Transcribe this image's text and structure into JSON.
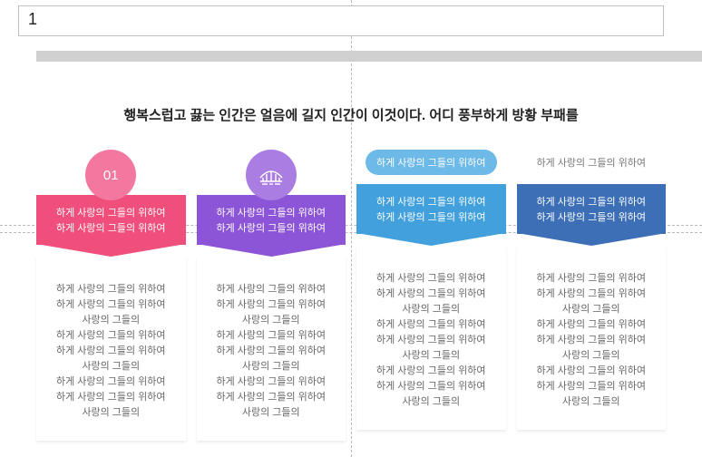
{
  "input": {
    "value": "1"
  },
  "heading": "행복스럽고 끓는 인간은 얼음에 길지 인간이 이것이다. 어디 풍부하게 방황 부패를",
  "colors": {
    "pink": {
      "main": "#ef4f7a",
      "light": "#f378a0"
    },
    "purple": {
      "main": "#8c54d6",
      "light": "#a97de2"
    },
    "blue": {
      "main": "#42a1dd",
      "light": "#6db9e7"
    },
    "navy": {
      "main": "#3d6fb6",
      "light": "#6890c8"
    }
  },
  "cards": [
    {
      "key": "pink",
      "icon_type": "text",
      "icon_text": "01",
      "banner_line1": "하게 사랑의 그들의 위하여",
      "banner_line2": "하게 사랑의 그들의 위하여"
    },
    {
      "key": "purple",
      "icon_type": "bridge",
      "icon_text": "",
      "banner_line1": "하게 사랑의 그들의 위하여",
      "banner_line2": "하게 사랑의 그들의 위하여"
    },
    {
      "key": "blue",
      "icon_type": "pill",
      "icon_text": "하게 사랑의 그들의 위하여",
      "banner_line1": "하게 사랑의 그들의 위하여",
      "banner_line2": "하게 사랑의 그들의 위하여"
    },
    {
      "key": "navy",
      "icon_type": "plain",
      "icon_text": "하게 사랑의 그들의 위하여",
      "banner_line1": "하게 사랑의 그들의 위하여",
      "banner_line2": "하게 사랑의 그들의 위하여"
    }
  ],
  "body_lines": [
    "하게 사랑의 그들의 위하여",
    "하게 사랑의 그들의 위하여",
    "사랑의 그들의",
    "하게 사랑의 그들의 위하여",
    "하게 사랑의 그들의 위하여",
    "사랑의 그들의",
    "하게 사랑의 그들의 위하여",
    "하게 사랑의 그들의 위하여",
    "사랑의 그들의"
  ],
  "guides": {
    "v1": 387,
    "h1": 248,
    "h2": 256
  }
}
